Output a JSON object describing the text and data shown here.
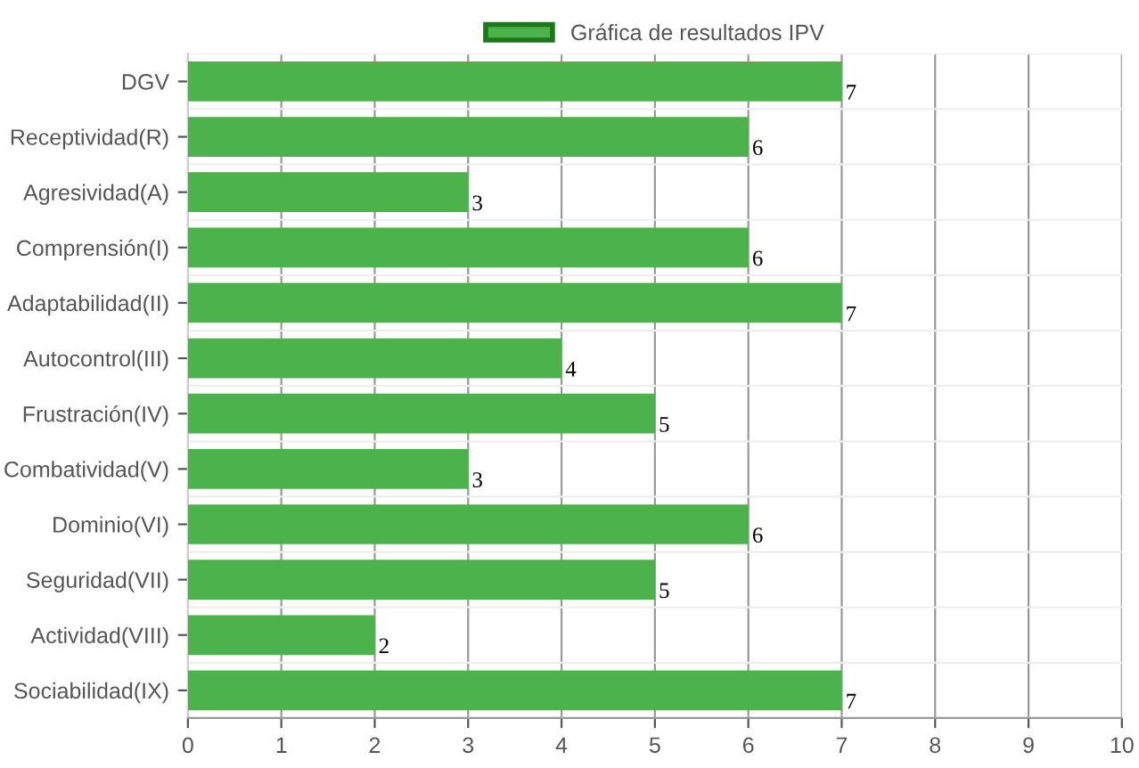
{
  "chart_data": {
    "type": "bar",
    "orientation": "horizontal",
    "categories": [
      "DGV",
      "Receptividad(R)",
      "Agresividad(A)",
      "Comprensión(I)",
      "Adaptabilidad(II)",
      "Autocontrol(III)",
      "Frustración(IV)",
      "Combatividad(V)",
      "Dominio(VI)",
      "Seguridad(VII)",
      "Actividad(VIII)",
      "Sociabilidad(IX)"
    ],
    "series": [
      {
        "name": "Gráfica de resultados IPV",
        "color": "#4cb34c",
        "values": [
          7,
          6,
          3,
          6,
          7,
          4,
          5,
          3,
          6,
          5,
          2,
          7
        ]
      }
    ],
    "xlim": [
      0,
      10
    ],
    "xticks": [
      0,
      1,
      2,
      3,
      4,
      5,
      6,
      7,
      8,
      9,
      10
    ],
    "grid": "x",
    "legend": "top",
    "data_labels": true
  }
}
